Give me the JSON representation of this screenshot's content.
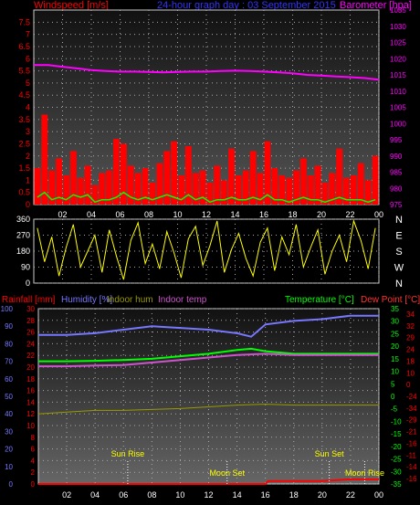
{
  "header": {
    "wind_label": "Windspeed [m/s]",
    "title": "24-hour graph day : 03 September 2015",
    "baro_label": "Barometer [hpa]"
  },
  "colors": {
    "wind": "#ff0000",
    "wind_avg": "#00ff00",
    "baro": "#ff00ff",
    "direction": "#ffff00",
    "rain": "#ff0000",
    "humidity": "#7777ff",
    "indoor_hum": "#999900",
    "indoor_temp": "#cc55cc",
    "temperature": "#00ff00",
    "dewpoint": "#ff0000",
    "title": "#3333ff"
  },
  "x_ticks": [
    "02",
    "04",
    "06",
    "08",
    "10",
    "12",
    "14",
    "16",
    "18",
    "20",
    "22",
    "00"
  ],
  "bottom_header": {
    "rain_label": "Rainfall [mm]",
    "hum_label": "Humidity [%]",
    "indoor_hum_label": "Indoor hum",
    "indoor_temp_label": "Indoor temp",
    "temp_label": "Temperature [°C]",
    "dew_label": "Dew Point [°C]"
  },
  "events": [
    {
      "label": "Sun Rise",
      "hour": 6.3
    },
    {
      "label": "Moon Set",
      "hour": 13.3
    },
    {
      "label": "Sun Set",
      "hour": 20.5
    },
    {
      "label": "Moon Rise",
      "hour": 23.0
    }
  ],
  "chart_data": [
    {
      "type": "line",
      "name": "wind_baro",
      "x_range": [
        0,
        24
      ],
      "wind_ylim": [
        0,
        8
      ],
      "wind_ticks": [
        "0",
        "0.5",
        "1",
        "1.5",
        "2",
        "2.5",
        "3",
        "3.5",
        "4",
        "4.5",
        "5",
        "5.5",
        "6",
        "6.5",
        "7",
        "7.5"
      ],
      "baro_ylim": [
        975,
        1035
      ],
      "baro_ticks": [
        "975",
        "980",
        "985",
        "990",
        "995",
        "1000",
        "1005",
        "1010",
        "1015",
        "1020",
        "1025",
        "1030",
        "1035"
      ],
      "series": [
        {
          "name": "Barometer",
          "x": [
            0,
            1,
            2,
            3,
            4,
            5,
            6,
            7,
            8,
            9,
            10,
            11,
            12,
            13,
            14,
            15,
            16,
            17,
            18,
            19,
            20,
            21,
            22,
            23,
            24
          ],
          "values": [
            1018,
            1018,
            1017.5,
            1017,
            1016.5,
            1016.2,
            1016,
            1016,
            1015.9,
            1015.8,
            1015.9,
            1016,
            1016,
            1016.2,
            1016.3,
            1016.2,
            1016,
            1015.8,
            1015.5,
            1015,
            1014.8,
            1014.5,
            1014.3,
            1014,
            1013.5
          ]
        }
      ],
      "wind_bars_max": [
        1.5,
        3.7,
        1.4,
        1.9,
        1.2,
        2.2,
        1.1,
        1.6,
        0.8,
        1.3,
        1.4,
        2.7,
        2.5,
        1.6,
        1.3,
        1.5,
        0.9,
        1.7,
        2.2,
        2.6,
        1.2,
        2.4,
        1.3,
        1.4,
        0.9,
        1.6,
        1.0,
        2.3,
        1.2,
        1.4,
        2.2,
        1.3,
        2.6,
        1.5,
        1.2,
        1.1,
        1.4,
        1.9,
        1.2,
        1.6,
        0.9,
        1.3,
        2.3,
        1.1,
        1.2,
        1.7,
        1.0,
        2.0
      ],
      "wind_avg": [
        0.3,
        0.5,
        0.2,
        0.3,
        0.2,
        0.4,
        0.3,
        0.4,
        0.1,
        0.2,
        0.2,
        0.3,
        0.5,
        0.3,
        0.2,
        0.3,
        0.2,
        0.3,
        0.4,
        0.3,
        0.2,
        0.4,
        0.2,
        0.3,
        0.1,
        0.2,
        0.2,
        0.3,
        0.2,
        0.2,
        0.3,
        0.2,
        0.4,
        0.2,
        0.2,
        0.1,
        0.2,
        0.3,
        0.2,
        0.2,
        0.1,
        0.2,
        0.3,
        0.2,
        0.2,
        0.2,
        0.1,
        0.2
      ]
    },
    {
      "type": "line",
      "name": "wind_direction",
      "x_range": [
        0,
        24
      ],
      "ylim": [
        0,
        360
      ],
      "y_ticks": [
        "0",
        "90",
        "180",
        "270",
        "360"
      ],
      "compass": [
        "N",
        "W",
        "S",
        "E",
        "N"
      ],
      "values": [
        310,
        120,
        260,
        40,
        200,
        330,
        90,
        180,
        270,
        60,
        300,
        150,
        20,
        240,
        340,
        110,
        220,
        80,
        290,
        170,
        30,
        250,
        320,
        100,
        210,
        350,
        60,
        190,
        280,
        140,
        40,
        230,
        310,
        70,
        260,
        160,
        330,
        90,
        200,
        300,
        50,
        180,
        270,
        120,
        350,
        240,
        80,
        310
      ]
    },
    {
      "type": "line",
      "name": "temp_hum",
      "x_range": [
        0,
        24
      ],
      "hum_ylim": [
        0,
        100
      ],
      "hum_ticks": [
        "0",
        "10",
        "20",
        "30",
        "40",
        "50",
        "60",
        "70",
        "80",
        "90",
        "100"
      ],
      "rain_ticks": [
        "0",
        "2",
        "4",
        "6",
        "8",
        "10",
        "12",
        "14",
        "16",
        "18",
        "20",
        "22",
        "24",
        "26",
        "28",
        "30"
      ],
      "temp_ticks": [
        "35",
        "30",
        "25",
        "20",
        "15",
        "10",
        "5",
        "0",
        "-5",
        "-10",
        "-15",
        "-20",
        "-25",
        "-30",
        "-35"
      ],
      "dew_ticks": [
        "34",
        "32",
        "29",
        "24",
        "18",
        "10",
        "0",
        "-24",
        "-34",
        "-29",
        "-21",
        "-16",
        "-11",
        "-14",
        "-16"
      ],
      "series": [
        {
          "name": "Humidity",
          "x": [
            0,
            2,
            4,
            6,
            8,
            10,
            12,
            14,
            15,
            16,
            18,
            20,
            22,
            24
          ],
          "values": [
            85,
            85,
            86,
            88,
            90,
            89,
            88,
            86,
            84,
            91,
            93,
            94,
            96,
            96
          ]
        },
        {
          "name": "Temperature",
          "x": [
            0,
            2,
            4,
            6,
            8,
            10,
            12,
            14,
            15,
            16,
            18,
            20,
            22,
            24
          ],
          "values": [
            14,
            14,
            14.2,
            14.5,
            15,
            16,
            17,
            18.5,
            19,
            18,
            17,
            17,
            17,
            17
          ]
        },
        {
          "name": "Indoor temp",
          "x": [
            0,
            2,
            4,
            6,
            8,
            10,
            12,
            14,
            16,
            18,
            20,
            22,
            24
          ],
          "values": [
            12,
            12,
            12.3,
            12.5,
            13.5,
            14.5,
            15.5,
            16.5,
            17,
            16.5,
            16.5,
            16.5,
            16.5
          ]
        },
        {
          "name": "Indoor hum",
          "x": [
            0,
            2,
            4,
            6,
            8,
            10,
            12,
            14,
            16,
            18,
            20,
            22,
            24
          ],
          "values": [
            40,
            41,
            42,
            42,
            42.5,
            43,
            44,
            45,
            45.5,
            45,
            45,
            45,
            45
          ]
        },
        {
          "name": "Rainfall",
          "x": [
            0,
            16,
            16.2,
            17,
            20,
            22,
            24
          ],
          "values": [
            0,
            0,
            0.5,
            0.5,
            0.5,
            0.8,
            0.8
          ]
        }
      ]
    }
  ]
}
